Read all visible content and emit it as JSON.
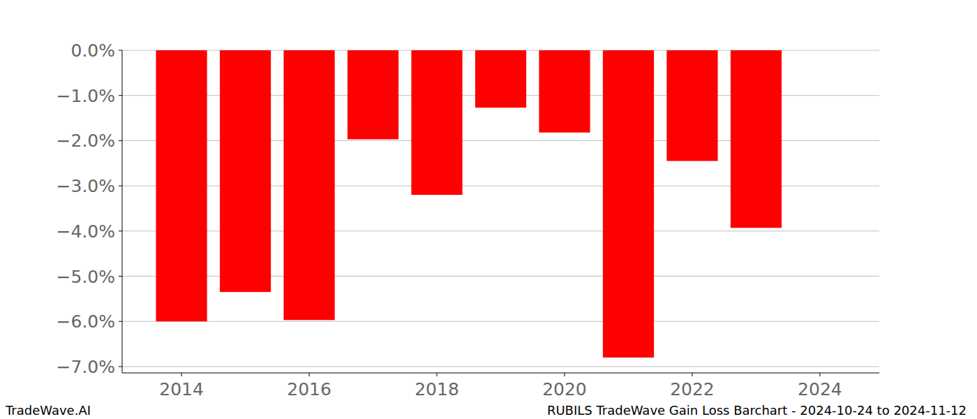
{
  "chart_data": {
    "type": "bar",
    "title": "RUBILS TradeWave Gain Loss Barchart - 2024-10-24 to 2024-11-12",
    "annotations": [
      "TradeWave.AI"
    ],
    "x": [
      2014,
      2015,
      2016,
      2017,
      2018,
      2019,
      2020,
      2021,
      2022,
      2023
    ],
    "values": [
      -6.0,
      -5.35,
      -5.97,
      -1.97,
      -3.2,
      -1.27,
      -1.82,
      -6.8,
      -2.45,
      -3.93
    ],
    "color": "#ff0000",
    "xlim": [
      2013.07,
      2024.93
    ],
    "xticks": [
      2014,
      2016,
      2018,
      2020,
      2022,
      2024
    ],
    "ylim": [
      -7.14,
      0
    ],
    "yticks": [
      {
        "value": 0,
        "label": "0.0%"
      },
      {
        "value": -1,
        "label": "−1.0%"
      },
      {
        "value": -2,
        "label": "−2.0%"
      },
      {
        "value": -3,
        "label": "−3.0%"
      },
      {
        "value": -4,
        "label": "−4.0%"
      },
      {
        "value": -5,
        "label": "−5.0%"
      },
      {
        "value": -6,
        "label": "−6.0%"
      },
      {
        "value": -7,
        "label": "−7.0%"
      }
    ],
    "grid": true
  }
}
